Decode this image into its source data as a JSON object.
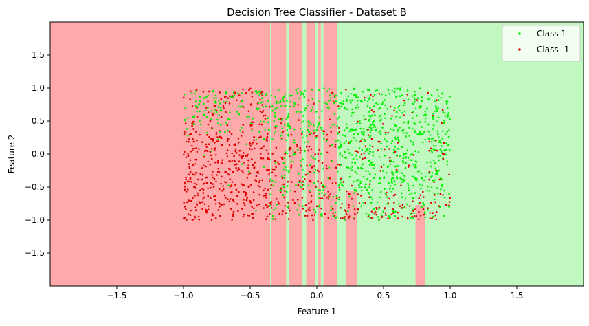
{
  "chart_data": {
    "type": "scatter",
    "title": "Decision Tree Classifier - Dataset B",
    "xlabel": "Feature 1",
    "ylabel": "Feature 2",
    "xlim": [
      -2.0,
      2.0
    ],
    "ylim": [
      -2.0,
      2.0
    ],
    "xticks": [
      -1.5,
      -1.0,
      -0.5,
      0.0,
      0.5,
      1.0,
      1.5
    ],
    "xtick_labels": [
      "−1.5",
      "−1.0",
      "−0.5",
      "0.0",
      "0.5",
      "1.0",
      "1.5"
    ],
    "yticks": [
      -1.5,
      -1.0,
      -0.5,
      0.0,
      0.5,
      1.0,
      1.5
    ],
    "ytick_labels": [
      "−1.5",
      "−1.0",
      "−0.5",
      "0.0",
      "0.5",
      "1.0",
      "1.5"
    ],
    "grid": false,
    "legend_position": "top-right",
    "background_regions": {
      "default_class": "-1",
      "class_1_region_color": "#c0f8c0",
      "class_neg1_region_color": "#ffaaaa",
      "class_1_x_bands": [
        [
          -0.35,
          -0.34
        ],
        [
          -0.23,
          -0.21
        ],
        [
          -0.11,
          -0.08
        ],
        [
          -0.01,
          0.01
        ],
        [
          0.03,
          0.05
        ],
        [
          0.15,
          2.0
        ]
      ],
      "class_neg1_patches": [
        {
          "x": [
            0.22,
            0.3
          ],
          "y": [
            -2.0,
            -0.55
          ]
        },
        {
          "x": [
            0.74,
            0.81
          ],
          "y": [
            -2.0,
            -0.77
          ]
        }
      ]
    },
    "series": [
      {
        "name": "Class 1",
        "color": "#00ee00",
        "label_value": 1,
        "region": "x from -1 to 1, y from -1 to 1; predominantly x > 0.1 and, on the left half, y > 0.4"
      },
      {
        "name": "Class -1",
        "color": "#dd0000",
        "label_value": -1,
        "region": "x from -1 to 1, y from -1 to 1; predominantly x < 0.1 and, on the right half, y < -0.6"
      }
    ],
    "n_points_per_series": 900
  }
}
